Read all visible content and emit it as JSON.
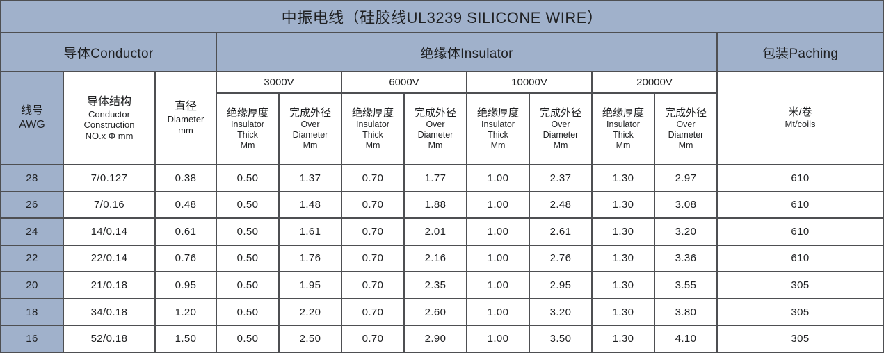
{
  "title": "中振电线（硅胶线UL3239 SILICONE WIRE）",
  "groups": {
    "conductor": "导体Conductor",
    "insulator": "绝缘体Insulator",
    "packing": "包装Paching"
  },
  "columns": {
    "awg": {
      "zh": "线号",
      "en": "AWG"
    },
    "construction": {
      "zh": "导体结构",
      "en1": "Conductor",
      "en2": "Construction",
      "en3": "NO.x Φ mm"
    },
    "diameter": {
      "zh": "直径",
      "en1": "Diameter",
      "en2": "mm"
    },
    "voltages": [
      "3000V",
      "6000V",
      "10000V",
      "20000V"
    ],
    "thick": {
      "zh": "绝缘厚度",
      "en1": "Insulator",
      "en2": "Thick",
      "en3": "Mm"
    },
    "over": {
      "zh": "完成外径",
      "en1": "Over",
      "en2": "Diameter",
      "en3": "Mm"
    },
    "coils": {
      "zh": "米/卷",
      "en": "Mt/coils"
    }
  },
  "rows": [
    [
      "28",
      "7/0.127",
      "0.38",
      "0.50",
      "1.37",
      "0.70",
      "1.77",
      "1.00",
      "2.37",
      "1.30",
      "2.97",
      "610"
    ],
    [
      "26",
      "7/0.16",
      "0.48",
      "0.50",
      "1.48",
      "0.70",
      "1.88",
      "1.00",
      "2.48",
      "1.30",
      "3.08",
      "610"
    ],
    [
      "24",
      "14/0.14",
      "0.61",
      "0.50",
      "1.61",
      "0.70",
      "2.01",
      "1.00",
      "2.61",
      "1.30",
      "3.20",
      "610"
    ],
    [
      "22",
      "22/0.14",
      "0.76",
      "0.50",
      "1.76",
      "0.70",
      "2.16",
      "1.00",
      "2.76",
      "1.30",
      "3.36",
      "610"
    ],
    [
      "20",
      "21/0.18",
      "0.95",
      "0.50",
      "1.95",
      "0.70",
      "2.35",
      "1.00",
      "2.95",
      "1.30",
      "3.55",
      "305"
    ],
    [
      "18",
      "34/0.18",
      "1.20",
      "0.50",
      "2.20",
      "0.70",
      "2.60",
      "1.00",
      "3.20",
      "1.30",
      "3.80",
      "305"
    ],
    [
      "16",
      "52/0.18",
      "1.50",
      "0.50",
      "2.50",
      "0.70",
      "2.90",
      "1.00",
      "3.50",
      "1.30",
      "4.10",
      "305"
    ]
  ],
  "colors": {
    "header_blue": "#a0b1cb",
    "border": "#4e4f52",
    "cell_bg": "#ffffff",
    "text": "#1f2022"
  }
}
